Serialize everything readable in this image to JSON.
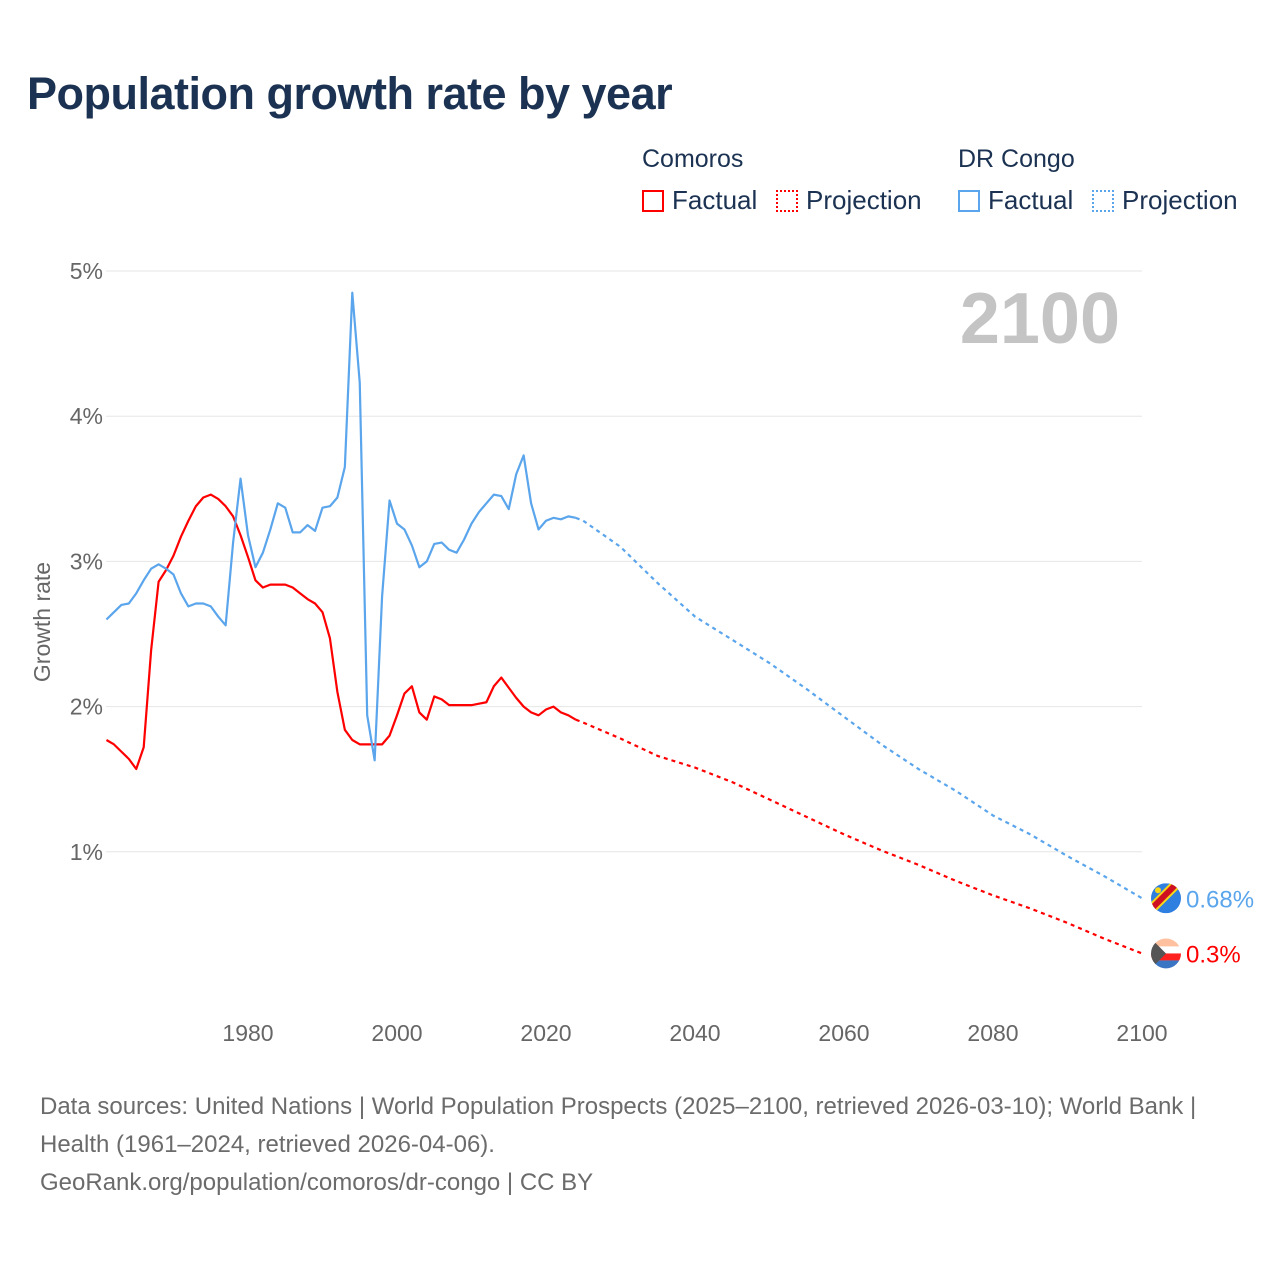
{
  "title": "Population growth rate by year",
  "legend": {
    "groups": [
      {
        "country": "Comoros",
        "factual": "Factual",
        "projection": "Projection",
        "color": "#ff0000"
      },
      {
        "country": "DR Congo",
        "factual": "Factual",
        "projection": "Projection",
        "color": "#5aa5ec"
      }
    ]
  },
  "chart_data": {
    "type": "line",
    "title": "Population growth rate by year",
    "ylabel": "Growth rate",
    "xlabel": "",
    "xlim": [
      1961,
      2100
    ],
    "ylim": [
      0,
      5
    ],
    "x_ticks": [
      1980,
      2000,
      2020,
      2040,
      2060,
      2080,
      2100
    ],
    "y_ticks": [
      {
        "v": 1,
        "label": "1%"
      },
      {
        "v": 2,
        "label": "2%"
      },
      {
        "v": 3,
        "label": "3%"
      },
      {
        "v": 4,
        "label": "4%"
      },
      {
        "v": 5,
        "label": "5%"
      }
    ],
    "year_label": "2100",
    "grid": true,
    "series": [
      {
        "name": "Comoros",
        "color": "#ff0000",
        "end_label": "0.3%",
        "flag": "comoros-flag",
        "factual": {
          "start": 1961,
          "values": [
            1.77,
            1.74,
            1.69,
            1.64,
            1.57,
            1.72,
            2.39,
            2.86,
            2.94,
            3.04,
            3.17,
            3.28,
            3.38,
            3.44,
            3.46,
            3.43,
            3.38,
            3.31,
            3.18,
            3.03,
            2.87,
            2.82,
            2.84,
            2.84,
            2.84,
            2.82,
            2.78,
            2.74,
            2.71,
            2.65,
            2.47,
            2.1,
            1.84,
            1.77,
            1.74,
            1.74,
            1.74,
            1.74,
            1.8,
            1.94,
            2.09,
            2.14,
            1.96,
            1.91,
            2.07,
            2.05,
            2.01,
            2.01,
            2.01,
            2.01,
            2.02,
            2.03,
            2.14,
            2.2,
            2.13,
            2.06,
            2.0,
            1.96,
            1.94,
            1.98,
            2.0,
            1.96,
            1.94,
            1.91
          ]
        },
        "projection": {
          "x": [
            2024,
            2025,
            2030,
            2035,
            2040,
            2045,
            2050,
            2055,
            2060,
            2065,
            2070,
            2075,
            2080,
            2085,
            2090,
            2095,
            2100
          ],
          "values": [
            1.91,
            1.89,
            1.78,
            1.66,
            1.58,
            1.48,
            1.36,
            1.24,
            1.12,
            1.01,
            0.91,
            0.8,
            0.7,
            0.61,
            0.51,
            0.4,
            0.3
          ]
        }
      },
      {
        "name": "DR Congo",
        "color": "#5aa5ec",
        "end_label": "0.68%",
        "flag": "dr-congo-flag",
        "factual": {
          "start": 1961,
          "values": [
            2.6,
            2.65,
            2.7,
            2.71,
            2.78,
            2.87,
            2.95,
            2.98,
            2.95,
            2.91,
            2.78,
            2.69,
            2.71,
            2.71,
            2.69,
            2.62,
            2.56,
            3.13,
            3.57,
            3.18,
            2.96,
            3.06,
            3.22,
            3.4,
            3.37,
            3.2,
            3.2,
            3.25,
            3.21,
            3.37,
            3.38,
            3.44,
            3.65,
            4.85,
            4.23,
            1.94,
            1.63,
            2.76,
            3.42,
            3.26,
            3.22,
            3.11,
            2.96,
            3.0,
            3.12,
            3.13,
            3.08,
            3.06,
            3.15,
            3.26,
            3.34,
            3.4,
            3.46,
            3.45,
            3.36,
            3.6,
            3.73,
            3.4,
            3.22,
            3.28,
            3.3,
            3.29,
            3.31,
            3.3
          ]
        },
        "projection": {
          "x": [
            2024,
            2025,
            2030,
            2035,
            2040,
            2045,
            2050,
            2055,
            2060,
            2065,
            2070,
            2075,
            2080,
            2085,
            2090,
            2095,
            2100
          ],
          "values": [
            3.3,
            3.28,
            3.1,
            2.85,
            2.62,
            2.46,
            2.3,
            2.12,
            1.93,
            1.74,
            1.57,
            1.42,
            1.25,
            1.12,
            0.97,
            0.83,
            0.68
          ]
        }
      }
    ]
  },
  "footer": {
    "sources": "Data sources: United Nations | World Population Prospects (2025–2100, retrieved 2026-03-10); World Bank | Health (1961–2024, retrieved 2026-04-06).",
    "credit": "GeoRank.org/population/comoros/dr-congo | CC BY"
  }
}
